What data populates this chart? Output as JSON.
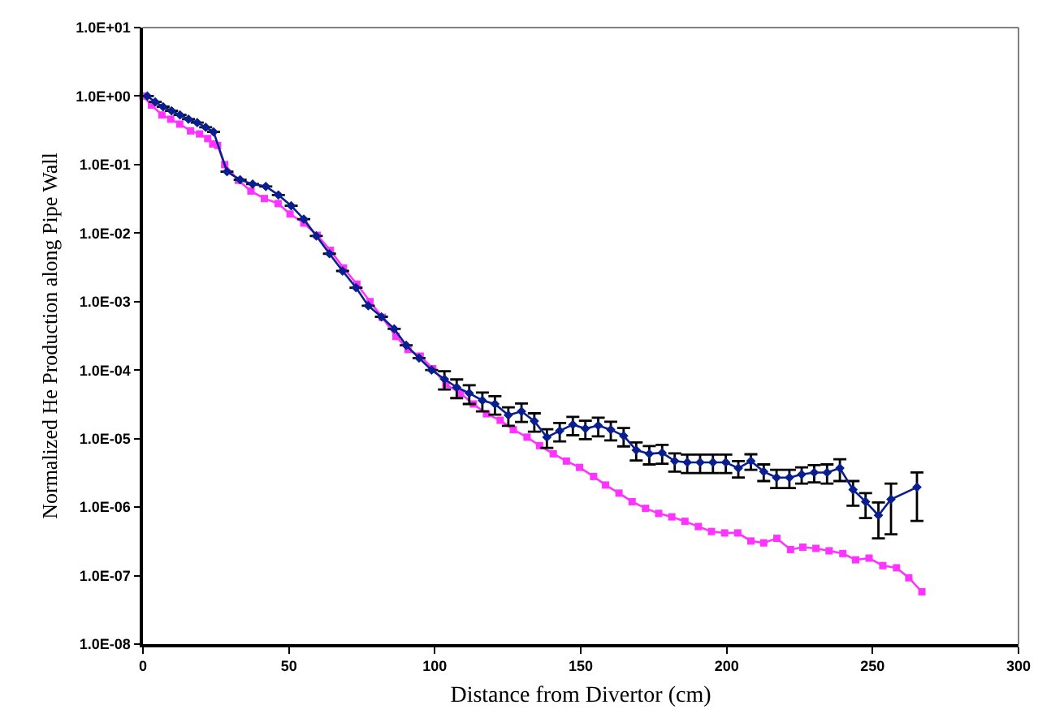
{
  "chart_data": {
    "type": "line",
    "xlabel": "Distance from Divertor (cm)",
    "ylabel": "Normalized He Production along Pipe Wall",
    "log": "y",
    "xlim": [
      0,
      300
    ],
    "xticks": [
      0,
      50,
      100,
      150,
      200,
      250,
      300
    ],
    "ylim": [
      1e-08,
      10
    ],
    "yticks": [
      {
        "value": 1e-08,
        "label": "1.0E-08"
      },
      {
        "value": 1e-07,
        "label": "1.0E-07"
      },
      {
        "value": 1e-06,
        "label": "1.0E-06"
      },
      {
        "value": 1e-05,
        "label": "1.0E-05"
      },
      {
        "value": 0.0001,
        "label": "1.0E-04"
      },
      {
        "value": 0.001,
        "label": "1.0E-03"
      },
      {
        "value": 0.01,
        "label": "1.0E-02"
      },
      {
        "value": 0.1,
        "label": "1.0E-01"
      },
      {
        "value": 1,
        "label": "1.0E+00"
      },
      {
        "value": 10,
        "label": "1.0E+01"
      }
    ],
    "series": [
      {
        "color": "#0a1f8f",
        "marker": "diamond",
        "x": [
          1.5,
          4.2,
          6.9,
          9.8,
          12.7,
          15.6,
          18.6,
          21.5,
          24.2,
          28.8,
          33.3,
          37.6,
          42.1,
          46.4,
          50.8,
          55.1,
          59.4,
          63.9,
          68.4,
          73.0,
          77.2,
          81.7,
          86.1,
          90.2,
          94.6,
          98.9,
          103.3,
          107.5,
          111.8,
          116.3,
          120.6,
          125.2,
          129.7,
          134.1,
          138.4,
          142.8,
          147.3,
          151.6,
          156.0,
          160.3,
          164.7,
          169.0,
          173.5,
          177.9,
          182.2,
          186.5,
          190.9,
          195.3,
          199.7,
          204.0,
          208.3,
          212.7,
          217.1,
          221.5,
          225.7,
          230.0,
          234.4,
          238.8,
          243.3,
          247.6,
          252.0,
          256.3,
          265.2
        ],
        "values": [
          1.0,
          0.82,
          0.7,
          0.61,
          0.53,
          0.46,
          0.41,
          0.35,
          0.3,
          0.079,
          0.06,
          0.052,
          0.048,
          0.036,
          0.025,
          0.016,
          0.0091,
          0.005,
          0.0028,
          0.0016,
          0.00087,
          0.0006,
          0.0004,
          0.00023,
          0.00015,
          0.0001,
          7.4e-05,
          5.6e-05,
          4.6e-05,
          3.6e-05,
          3.2e-05,
          2.2e-05,
          2.5e-05,
          1.8e-05,
          1.05e-05,
          1.3e-05,
          1.6e-05,
          1.4e-05,
          1.55e-05,
          1.35e-05,
          1.1e-05,
          6.8e-06,
          6e-06,
          6.2e-06,
          4.7e-06,
          4.5e-06,
          4.5e-06,
          4.5e-06,
          4.5e-06,
          3.7e-06,
          4.7e-06,
          3.3e-06,
          2.7e-06,
          2.7e-06,
          3e-06,
          3.2e-06,
          3.2e-06,
          3.7e-06,
          1.8e-06,
          1.2e-06,
          7.6e-07,
          1.3e-06,
          1.95e-06
        ],
        "errors": [
          null,
          null,
          null,
          null,
          null,
          null,
          null,
          null,
          null,
          null,
          null,
          null,
          null,
          null,
          null,
          null,
          null,
          null,
          null,
          null,
          null,
          null,
          null,
          null,
          null,
          null,
          2.2e-05,
          1.7e-05,
          1.4e-05,
          1.1e-05,
          9.6e-06,
          6.6e-06,
          7.5e-06,
          5.4e-06,
          3.2e-06,
          3.9e-06,
          4.8e-06,
          4.2e-06,
          4.7e-06,
          4.1e-06,
          3.3e-06,
          2e-06,
          1.8e-06,
          1.9e-06,
          1.4e-06,
          1.35e-06,
          1.35e-06,
          1.35e-06,
          1.35e-06,
          1e-06,
          1.2e-06,
          9e-07,
          8e-07,
          8e-07,
          8e-07,
          9e-07,
          1e-06,
          1.3e-06,
          [
            1.05e-06,
            2.4e-06
          ],
          [
            6.9e-07,
            1.6e-06
          ],
          [
            3.5e-07,
            1.17e-06
          ],
          [
            4e-07,
            2.2e-06
          ],
          [
            6.3e-07,
            3.2e-06
          ]
        ]
      },
      {
        "color": "#ff33ff",
        "marker": "square",
        "x": [
          0,
          2.9,
          6.5,
          9.5,
          12.6,
          16.3,
          19.4,
          22.2,
          23.9,
          25.6,
          28.0,
          32.7,
          37.0,
          41.6,
          46.3,
          50.4,
          55.1,
          59.7,
          64.2,
          68.7,
          73.3,
          77.8,
          82.0,
          86.7,
          90.8,
          95.0,
          99.3,
          103.8,
          108.8,
          113.2,
          117.7,
          122.4,
          126.9,
          131.6,
          135.9,
          140.6,
          145.1,
          149.6,
          154.4,
          158.5,
          163.1,
          167.6,
          172.2,
          176.7,
          181.2,
          185.7,
          190.3,
          194.8,
          199.3,
          203.8,
          208.3,
          212.7,
          217.2,
          221.9,
          226.1,
          230.6,
          235.1,
          239.8,
          244.2,
          248.8,
          253.5,
          258.2,
          262.4,
          266.9
        ],
        "values": [
          1.0,
          0.74,
          0.53,
          0.46,
          0.39,
          0.31,
          0.28,
          0.24,
          0.2,
          0.19,
          0.1,
          0.059,
          0.041,
          0.032,
          0.027,
          0.019,
          0.014,
          0.0093,
          0.0056,
          0.0031,
          0.0018,
          0.001,
          0.00059,
          0.00031,
          0.0002,
          0.00016,
          0.000105,
          6.2e-05,
          4.6e-05,
          3.2e-05,
          2.3e-05,
          1.85e-05,
          1.35e-05,
          1.05e-05,
          7.9e-06,
          6e-06,
          4.7e-06,
          3.8e-06,
          2.8e-06,
          2.1e-06,
          1.6e-06,
          1.2e-06,
          9.6e-07,
          8.1e-07,
          7.2e-07,
          6.2e-07,
          5.2e-07,
          4.4e-07,
          4.2e-07,
          4.2e-07,
          3.2e-07,
          3e-07,
          3.5e-07,
          2.4e-07,
          2.6e-07,
          2.5e-07,
          2.3e-07,
          2.1e-07,
          1.7e-07,
          1.8e-07,
          1.4e-07,
          1.3e-07,
          9.3e-08,
          5.8e-08
        ]
      }
    ]
  }
}
